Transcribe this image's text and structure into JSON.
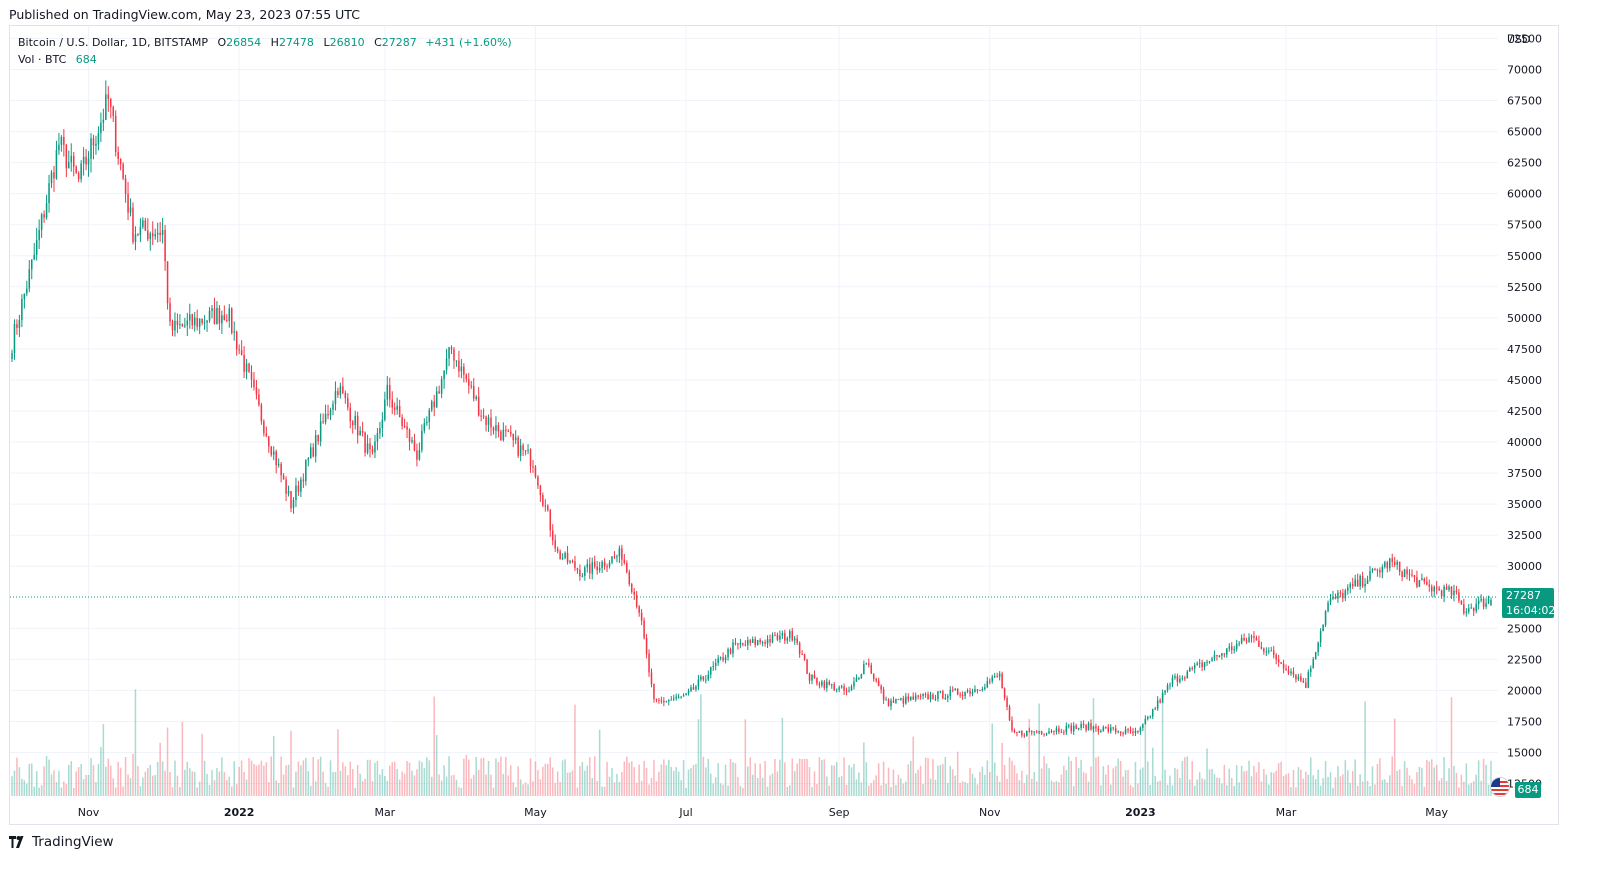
{
  "header": {
    "published": "Published on TradingView.com, May 23, 2023 07:55 UTC"
  },
  "legend": {
    "symbol": "Bitcoin / U.S. Dollar, 1D, BITSTAMP",
    "open_key": "O",
    "open": "26854",
    "high_key": "H",
    "high": "27478",
    "low_key": "L",
    "low": "26810",
    "close_key": "C",
    "close": "27287",
    "change": "+431 (+1.60%)",
    "vol_label": "Vol · BTC",
    "vol_value": "684"
  },
  "price_axis": {
    "currency": "USD",
    "ticks": [
      "72500",
      "70000",
      "67500",
      "65000",
      "62500",
      "60000",
      "57500",
      "55000",
      "52500",
      "50000",
      "47500",
      "45000",
      "42500",
      "40000",
      "37500",
      "35000",
      "32500",
      "30000",
      "25000",
      "22500",
      "20000",
      "17500",
      "15000",
      "12500"
    ]
  },
  "time_axis": {
    "ticks": [
      "Nov",
      "2022",
      "Mar",
      "May",
      "Jul",
      "Sep",
      "Nov",
      "2023",
      "Mar",
      "May"
    ]
  },
  "last_price": {
    "value": "27287",
    "countdown": "16:04:02"
  },
  "volume_badge": "684",
  "footer": {
    "brand": "TradingView"
  },
  "colors": {
    "up": "#089981",
    "down": "#f23645",
    "grid": "#f0f3fa",
    "axis_text": "#131722"
  },
  "chart_data": {
    "type": "candlestick",
    "title": "Bitcoin / U.S. Dollar, 1D, BITSTAMP",
    "currency": "USD",
    "ylim": [
      11500,
      73500
    ],
    "date_range": [
      "2021-10-01",
      "2023-05-23"
    ],
    "close_path": [
      [
        "2021-10-01",
        48000
      ],
      [
        "2021-10-10",
        55000
      ],
      [
        "2021-10-20",
        64000
      ],
      [
        "2021-10-28",
        61000
      ],
      [
        "2021-11-09",
        67500
      ],
      [
        "2021-11-19",
        57000
      ],
      [
        "2021-12-01",
        57000
      ],
      [
        "2021-12-04",
        49000
      ],
      [
        "2021-12-27",
        50500
      ],
      [
        "2022-01-10",
        42000
      ],
      [
        "2022-01-22",
        35000
      ],
      [
        "2022-02-10",
        44500
      ],
      [
        "2022-02-24",
        38500
      ],
      [
        "2022-03-02",
        44000
      ],
      [
        "2022-03-14",
        39000
      ],
      [
        "2022-03-28",
        47500
      ],
      [
        "2022-04-10",
        42000
      ],
      [
        "2022-04-30",
        38500
      ],
      [
        "2022-05-10",
        31000
      ],
      [
        "2022-05-20",
        29500
      ],
      [
        "2022-06-05",
        31000
      ],
      [
        "2022-06-12",
        26500
      ],
      [
        "2022-06-18",
        19000
      ],
      [
        "2022-07-01",
        19500
      ],
      [
        "2022-07-20",
        23500
      ],
      [
        "2022-08-14",
        24500
      ],
      [
        "2022-08-20",
        21000
      ],
      [
        "2022-09-05",
        19800
      ],
      [
        "2022-09-12",
        22400
      ],
      [
        "2022-09-20",
        19000
      ],
      [
        "2022-10-25",
        20000
      ],
      [
        "2022-11-05",
        21200
      ],
      [
        "2022-11-10",
        16500
      ],
      [
        "2022-12-10",
        17100
      ],
      [
        "2022-12-31",
        16500
      ],
      [
        "2023-01-14",
        20800
      ],
      [
        "2023-02-15",
        24300
      ],
      [
        "2023-03-09",
        20500
      ],
      [
        "2023-03-18",
        27000
      ],
      [
        "2023-04-12",
        30300
      ],
      [
        "2023-04-26",
        28400
      ],
      [
        "2023-05-08",
        27800
      ],
      [
        "2023-05-12",
        26500
      ],
      [
        "2023-05-22",
        27287
      ]
    ],
    "last": {
      "open": 26854,
      "high": 27478,
      "low": 26810,
      "close": 27287
    },
    "volume_last": 684
  }
}
